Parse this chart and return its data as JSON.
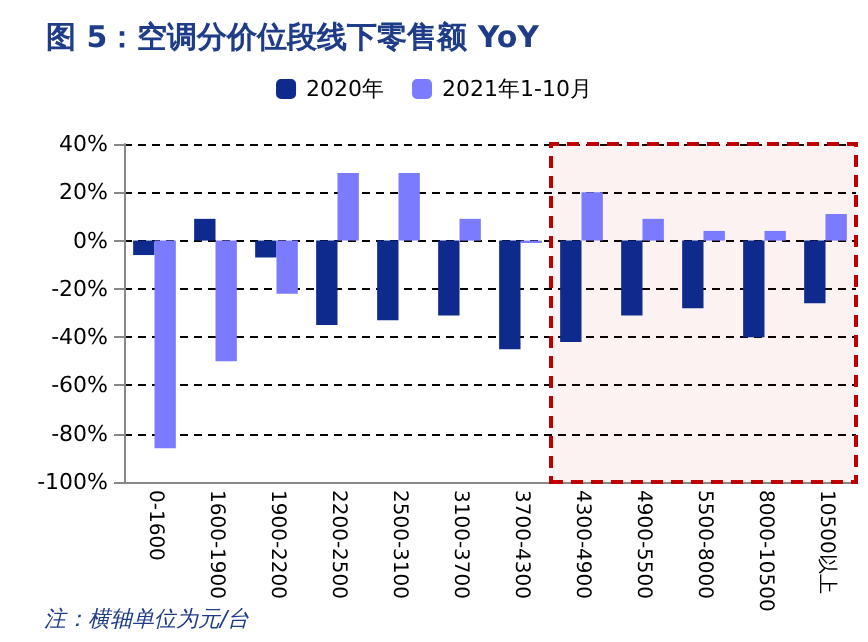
{
  "chart_data": {
    "type": "bar",
    "title": "图 5：空调分价位段线下零售额 YoY",
    "categories": [
      "0-1600",
      "1600-1900",
      "1900-2200",
      "2200-2500",
      "2500-3100",
      "3100-3700",
      "3700-4300",
      "4300-4900",
      "4900-5500",
      "5500-8000",
      "8000-10500",
      "10500以上"
    ],
    "series": [
      {
        "name": "2020年",
        "color": "#0d2a8c",
        "values": [
          -6,
          9,
          -7,
          -35,
          -33,
          -31,
          -45,
          -42,
          -31,
          -28,
          -40,
          -26
        ]
      },
      {
        "name": "2021年1-10月",
        "color": "#7b7bff",
        "values": [
          -86,
          -50,
          -22,
          28,
          28,
          9,
          -1,
          20,
          9,
          4,
          4,
          11
        ]
      }
    ],
    "ylim": [
      -100,
      40
    ],
    "yticks": [
      {
        "value": -100,
        "label": "-100%"
      },
      {
        "value": -80,
        "label": "-80%"
      },
      {
        "value": -60,
        "label": "-60%"
      },
      {
        "value": -40,
        "label": "-40%"
      },
      {
        "value": -20,
        "label": "-20%"
      },
      {
        "value": 0,
        "label": "0%"
      },
      {
        "value": 20,
        "label": "20%"
      },
      {
        "value": 40,
        "label": "40%"
      }
    ],
    "grid": "y",
    "legend": "top",
    "bands": [
      {
        "axis": "x",
        "from": "4300-4900",
        "to": "10500以上",
        "color": "#c00000"
      }
    ],
    "annotations": [
      "注：横轴单位为元/台"
    ]
  }
}
